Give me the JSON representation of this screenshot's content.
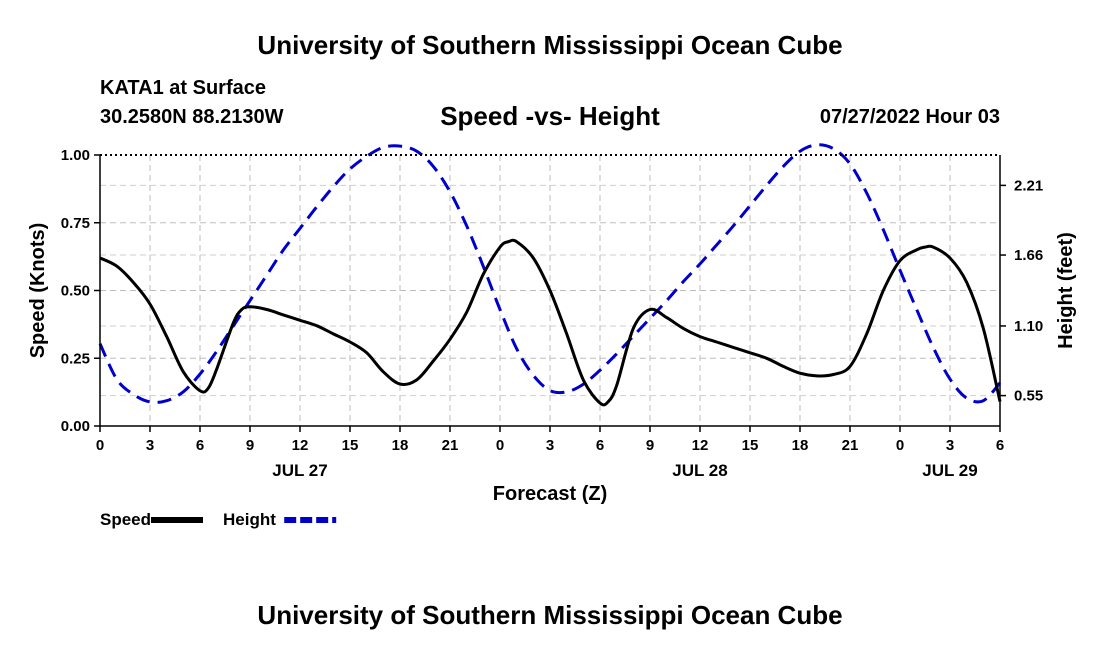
{
  "header": {
    "title": "University of Southern Mississippi Ocean Cube",
    "station": "KATA1 at Surface",
    "coords": "30.2580N  88.2130W",
    "subtitle": "Speed -vs- Height",
    "datetime": "07/27/2022 Hour 03"
  },
  "footer": {
    "title": "University of Southern Mississippi Ocean Cube"
  },
  "chart_data": {
    "type": "line",
    "xlabel": "Forecast (Z)",
    "ylabel_left": "Speed (Knots)",
    "ylabel_right": "Height (feet)",
    "x_range": [
      0,
      54
    ],
    "y_left_range": [
      0,
      1.0
    ],
    "y_right_range": [
      0.31,
      2.45
    ],
    "x_ticks": [
      {
        "v": 0,
        "label": "0"
      },
      {
        "v": 3,
        "label": "3"
      },
      {
        "v": 6,
        "label": "6"
      },
      {
        "v": 9,
        "label": "9"
      },
      {
        "v": 12,
        "label": "12"
      },
      {
        "v": 15,
        "label": "15"
      },
      {
        "v": 18,
        "label": "18"
      },
      {
        "v": 21,
        "label": "21"
      },
      {
        "v": 24,
        "label": "0"
      },
      {
        "v": 27,
        "label": "3"
      },
      {
        "v": 30,
        "label": "6"
      },
      {
        "v": 33,
        "label": "9"
      },
      {
        "v": 36,
        "label": "12"
      },
      {
        "v": 39,
        "label": "15"
      },
      {
        "v": 42,
        "label": "18"
      },
      {
        "v": 45,
        "label": "21"
      },
      {
        "v": 48,
        "label": "0"
      },
      {
        "v": 51,
        "label": "3"
      },
      {
        "v": 54,
        "label": "6"
      }
    ],
    "date_labels": [
      {
        "v": 12,
        "label": "JUL 27"
      },
      {
        "v": 36,
        "label": "JUL 28"
      },
      {
        "v": 51,
        "label": "JUL 29"
      }
    ],
    "y_left_ticks": [
      {
        "v": 0,
        "label": "0.00"
      },
      {
        "v": 0.25,
        "label": "0.25"
      },
      {
        "v": 0.5,
        "label": "0.50"
      },
      {
        "v": 0.75,
        "label": "0.75"
      },
      {
        "v": 1.0,
        "label": "1.00"
      }
    ],
    "y_right_ticks": [
      {
        "v": 0.55,
        "label": "0.55"
      },
      {
        "v": 1.1,
        "label": "1.10"
      },
      {
        "v": 1.66,
        "label": "1.66"
      },
      {
        "v": 2.21,
        "label": "2.21"
      }
    ],
    "series": [
      {
        "name": "Speed",
        "axis": "left",
        "color": "#000000",
        "style": "solid",
        "x": [
          0,
          1,
          2,
          3,
          4,
          5,
          6,
          6.5,
          7,
          8,
          8.5,
          9,
          10,
          11,
          12,
          13,
          14,
          15,
          16,
          17,
          18,
          19,
          20,
          21,
          22,
          23,
          24,
          24.5,
          25,
          26,
          27,
          28,
          29,
          30,
          30.5,
          31,
          32,
          33,
          34,
          35,
          36,
          37,
          38,
          39,
          40,
          41,
          42,
          43,
          44,
          45,
          46,
          47,
          48,
          49,
          49.5,
          50,
          51,
          52,
          53,
          54
        ],
        "y": [
          0.62,
          0.59,
          0.53,
          0.45,
          0.33,
          0.2,
          0.13,
          0.14,
          0.21,
          0.38,
          0.43,
          0.44,
          0.43,
          0.41,
          0.39,
          0.37,
          0.34,
          0.31,
          0.27,
          0.2,
          0.155,
          0.17,
          0.24,
          0.32,
          0.42,
          0.56,
          0.66,
          0.68,
          0.68,
          0.62,
          0.5,
          0.34,
          0.17,
          0.085,
          0.09,
          0.15,
          0.36,
          0.43,
          0.4,
          0.36,
          0.33,
          0.31,
          0.29,
          0.27,
          0.25,
          0.22,
          0.195,
          0.185,
          0.19,
          0.22,
          0.34,
          0.5,
          0.61,
          0.65,
          0.66,
          0.66,
          0.62,
          0.53,
          0.36,
          0.09
        ]
      },
      {
        "name": "Height",
        "axis": "right",
        "color": "#0000cc",
        "style": "dashed",
        "x": [
          0,
          1,
          2,
          3,
          4,
          5,
          6,
          7,
          8,
          9,
          10,
          11,
          12,
          13,
          14,
          15,
          16,
          17,
          18,
          19,
          20,
          21,
          22,
          23,
          24,
          25,
          26,
          27,
          28,
          29,
          30,
          31,
          32,
          33,
          34,
          35,
          36,
          37,
          38,
          39,
          40,
          41,
          42,
          43,
          44,
          45,
          46,
          47,
          48,
          49,
          50,
          51,
          52,
          53,
          54
        ],
        "y": [
          0.96,
          0.68,
          0.56,
          0.5,
          0.51,
          0.58,
          0.72,
          0.9,
          1.1,
          1.3,
          1.5,
          1.7,
          1.87,
          2.04,
          2.2,
          2.34,
          2.44,
          2.51,
          2.52,
          2.48,
          2.36,
          2.16,
          1.89,
          1.57,
          1.23,
          0.92,
          0.71,
          0.59,
          0.58,
          0.64,
          0.75,
          0.88,
          1.02,
          1.16,
          1.3,
          1.45,
          1.59,
          1.74,
          1.89,
          2.05,
          2.21,
          2.36,
          2.48,
          2.53,
          2.5,
          2.38,
          2.15,
          1.86,
          1.54,
          1.23,
          0.93,
          0.68,
          0.53,
          0.51,
          0.65
        ]
      }
    ],
    "legend": {
      "position": "bottom-left",
      "entries": [
        {
          "label": "Speed",
          "color": "#000000",
          "style": "solid"
        },
        {
          "label": "Height",
          "color": "#0000cc",
          "style": "dashed"
        }
      ]
    },
    "grid": true
  }
}
